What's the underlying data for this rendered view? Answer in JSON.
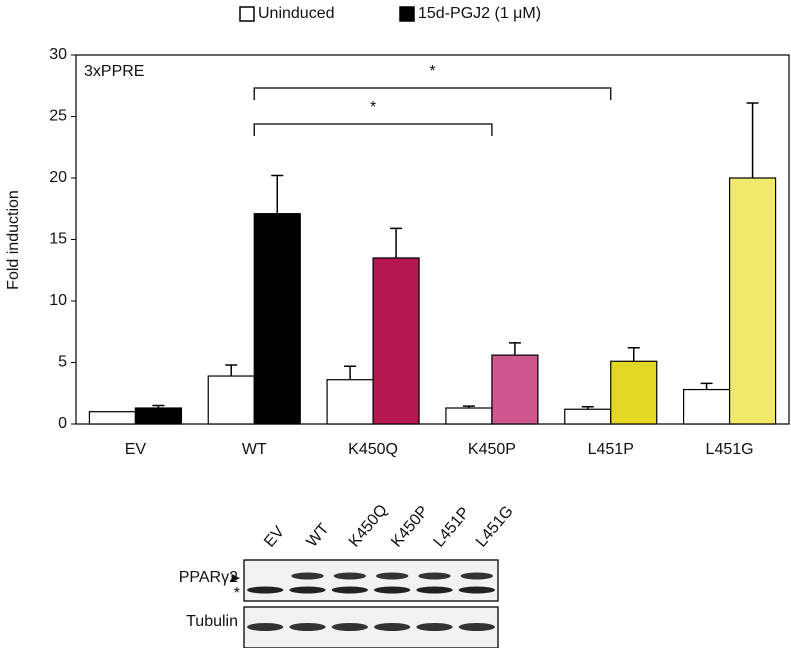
{
  "chart_data": {
    "type": "bar",
    "panel_label": "3xPPRE",
    "y_label": "Fold induction",
    "categories": [
      "EV",
      "WT",
      "K450Q",
      "K450P",
      "L451P",
      "L451G"
    ],
    "series": [
      {
        "name": "Uninduced",
        "color": "#ffffff",
        "values": [
          1.0,
          3.9,
          3.6,
          1.3,
          1.2,
          2.8
        ],
        "errors": [
          0,
          0.9,
          1.1,
          0.15,
          0.2,
          0.5
        ]
      },
      {
        "name": "15d-PGJ2 (1 μM)",
        "color": "#000000",
        "colors": [
          "#000000",
          "#000000",
          "#b5174f",
          "#d0568e",
          "#e5d825",
          "#f1e96a"
        ],
        "values": [
          1.3,
          17.1,
          13.5,
          5.6,
          5.1,
          20.0
        ],
        "errors": [
          0.2,
          3.1,
          2.4,
          1.0,
          1.1,
          6.1
        ]
      }
    ],
    "ylim": [
      0,
      30
    ],
    "yticks": [
      0,
      5,
      10,
      15,
      20,
      25,
      30
    ],
    "legend": "top",
    "brackets": [
      {
        "label": "*",
        "from": 1,
        "to": 3
      },
      {
        "label": "*",
        "from": 1,
        "to": 4
      }
    ]
  },
  "blot": {
    "rows": [
      "PPARγ2",
      "Tubulin"
    ],
    "band_marker": "▶",
    "nonspecific_marker": "*"
  }
}
